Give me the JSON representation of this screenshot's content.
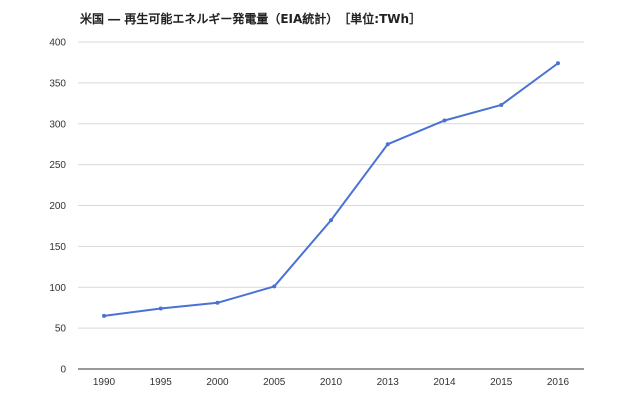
{
  "chart_data": {
    "type": "line",
    "title": "米国 ― 再生可能エネルギー発電量（EIA統計）　［単位:TWh］",
    "xlabel": "",
    "ylabel": "",
    "categories": [
      "1990",
      "1995",
      "2000",
      "2005",
      "2010",
      "2013",
      "2014",
      "2015",
      "2016"
    ],
    "series": [
      {
        "values": [
          65,
          74,
          81,
          101,
          182,
          275,
          304,
          323,
          374
        ]
      }
    ],
    "ylim": [
      0,
      400
    ],
    "yticks": [
      0,
      50,
      100,
      150,
      200,
      250,
      300,
      350,
      400
    ],
    "grid": true,
    "legend": "none",
    "colors": {
      "line": "#4a72d4",
      "grid": "#d9d9d9",
      "axis": "#333333"
    }
  }
}
